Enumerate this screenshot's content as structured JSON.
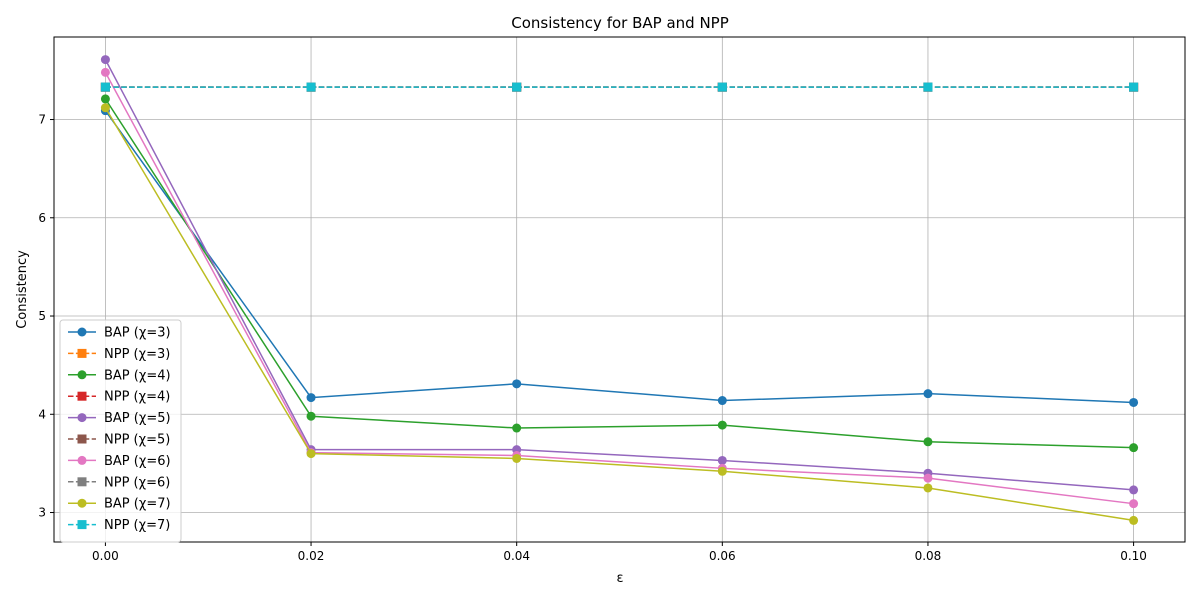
{
  "chart_data": {
    "type": "line",
    "title": "Consistency for BAP and NPP",
    "xlabel": "ε",
    "ylabel": "Consistency",
    "x": [
      0.0,
      0.02,
      0.04,
      0.06,
      0.08,
      0.1
    ],
    "x_ticks": [
      "0.00",
      "0.02",
      "0.04",
      "0.06",
      "0.08",
      "0.10"
    ],
    "y_ticks": [
      "3",
      "4",
      "5",
      "6",
      "7"
    ],
    "xlim": [
      -0.005,
      0.105
    ],
    "ylim": [
      2.7,
      7.84
    ],
    "grid": true,
    "legend_position": "lower-left",
    "series": [
      {
        "name": "BAP (χ=3)",
        "color": "#1f77b4",
        "style": "solid",
        "marker": "circle",
        "values": [
          7.09,
          4.17,
          4.31,
          4.14,
          4.21,
          4.12
        ]
      },
      {
        "name": "NPP (χ=3)",
        "color": "#ff7f0e",
        "style": "dashed",
        "marker": "square",
        "values": [
          7.33,
          7.33,
          7.33,
          7.33,
          7.33,
          7.33
        ]
      },
      {
        "name": "BAP (χ=4)",
        "color": "#2ca02c",
        "style": "solid",
        "marker": "circle",
        "values": [
          7.21,
          3.98,
          3.86,
          3.89,
          3.72,
          3.66
        ]
      },
      {
        "name": "NPP (χ=4)",
        "color": "#d62728",
        "style": "dashed",
        "marker": "square",
        "values": [
          7.33,
          7.33,
          7.33,
          7.33,
          7.33,
          7.33
        ]
      },
      {
        "name": "BAP (χ=5)",
        "color": "#9467bd",
        "style": "solid",
        "marker": "circle",
        "values": [
          7.61,
          3.64,
          3.64,
          3.53,
          3.4,
          3.23
        ]
      },
      {
        "name": "NPP (χ=5)",
        "color": "#8c564b",
        "style": "dashed",
        "marker": "square",
        "values": [
          7.33,
          7.33,
          7.33,
          7.33,
          7.33,
          7.33
        ]
      },
      {
        "name": "BAP (χ=6)",
        "color": "#e377c2",
        "style": "solid",
        "marker": "circle",
        "values": [
          7.48,
          3.61,
          3.58,
          3.45,
          3.35,
          3.09
        ]
      },
      {
        "name": "NPP (χ=6)",
        "color": "#7f7f7f",
        "style": "dashed",
        "marker": "square",
        "values": [
          7.33,
          7.33,
          7.33,
          7.33,
          7.33,
          7.33
        ]
      },
      {
        "name": "BAP (χ=7)",
        "color": "#bcbd22",
        "style": "solid",
        "marker": "circle",
        "values": [
          7.12,
          3.6,
          3.55,
          3.42,
          3.25,
          2.92
        ]
      },
      {
        "name": "NPP (χ=7)",
        "color": "#17becf",
        "style": "dashed",
        "marker": "square",
        "values": [
          7.33,
          7.33,
          7.33,
          7.33,
          7.33,
          7.33
        ]
      }
    ]
  }
}
